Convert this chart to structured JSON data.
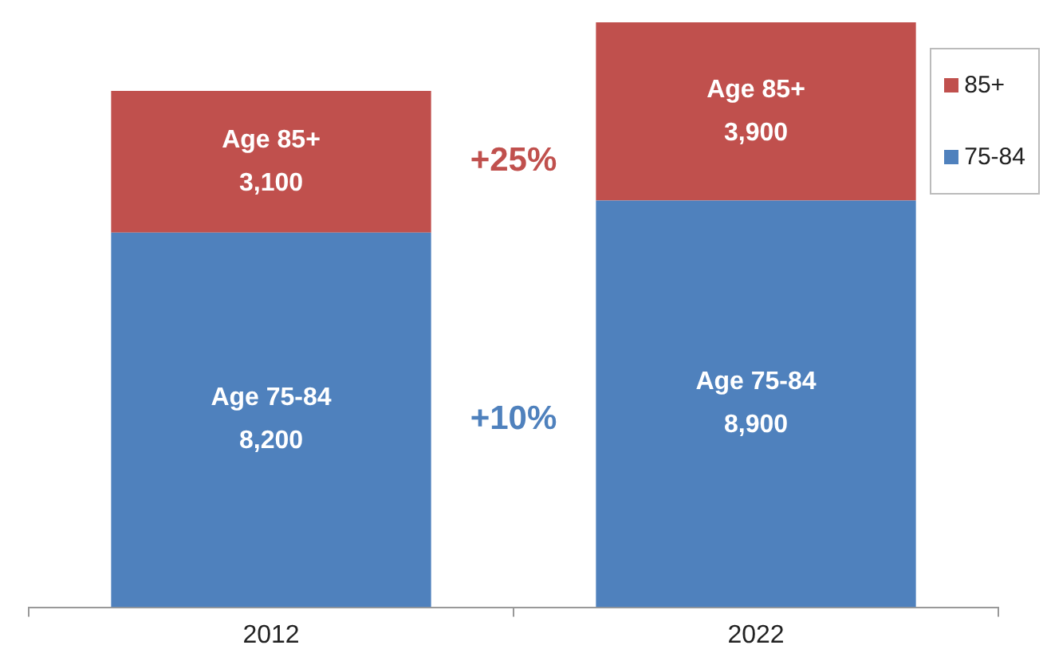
{
  "chart_data": {
    "type": "bar",
    "stacked": true,
    "categories": [
      "2012",
      "2022"
    ],
    "series": [
      {
        "name": "75-84",
        "color": "#4f81bd",
        "values": [
          8200,
          8900
        ],
        "value_labels": [
          "Age 75-84\n8,200",
          "Age 75-84\n8,900"
        ]
      },
      {
        "name": "85+",
        "color": "#c0504d",
        "values": [
          3100,
          3900
        ],
        "value_labels": [
          "Age 85+\n3,100",
          "Age 85+\n3,900"
        ]
      }
    ],
    "annotations": [
      "+25%",
      "+10%"
    ],
    "legend": "top right",
    "grid": false
  }
}
